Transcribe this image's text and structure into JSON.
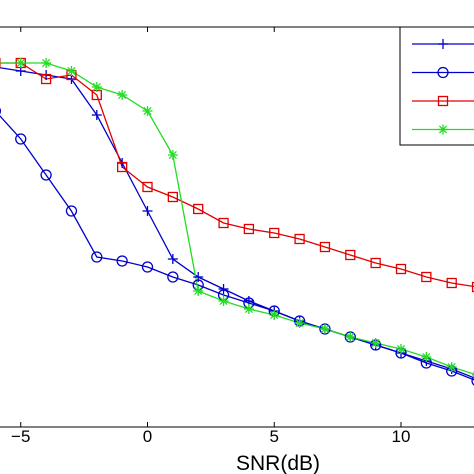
{
  "chart_data": {
    "type": "line",
    "xlabel": "SNR(dB)",
    "ylabel": "",
    "xlim": [
      -6,
      13
    ],
    "ylim": [
      0,
      10
    ],
    "x_ticks": [
      -5,
      0,
      5,
      10
    ],
    "x_tick_labels": [
      "−5",
      "0",
      "5",
      "10"
    ],
    "grid": false,
    "legend_position": "top-right",
    "series": [
      {
        "marker": "plus",
        "color": "#0000cc",
        "x": [
          -6,
          -5,
          -4,
          -3,
          -2,
          -1,
          0,
          1,
          2,
          3,
          4,
          5,
          6,
          7,
          8,
          9,
          10,
          11,
          12,
          13
        ],
        "y": [
          9.0,
          8.9,
          8.8,
          8.7,
          7.8,
          6.6,
          5.4,
          4.2,
          3.75,
          3.45,
          3.15,
          2.9,
          2.65,
          2.45,
          2.25,
          2.05,
          1.85,
          1.65,
          1.45,
          1.2
        ]
      },
      {
        "marker": "circle",
        "color": "#0000cc",
        "x": [
          -6,
          -5,
          -4,
          -3,
          -2,
          -1,
          0,
          1,
          2,
          3,
          4,
          5,
          6,
          7,
          8,
          9,
          10,
          11,
          12,
          13
        ],
        "y": [
          7.9,
          7.2,
          6.3,
          5.4,
          4.25,
          4.15,
          4.0,
          3.75,
          3.55,
          3.3,
          3.1,
          2.9,
          2.65,
          2.45,
          2.25,
          2.05,
          1.85,
          1.6,
          1.4,
          1.15
        ]
      },
      {
        "marker": "square",
        "color": "#e00000",
        "x": [
          -6,
          -5,
          -4,
          -3,
          -2,
          -1,
          0,
          1,
          2,
          3,
          4,
          5,
          6,
          7,
          8,
          9,
          10,
          11,
          12,
          13
        ],
        "y": [
          9.1,
          9.1,
          8.7,
          8.8,
          8.3,
          6.5,
          6.0,
          5.75,
          5.45,
          5.1,
          4.95,
          4.85,
          4.7,
          4.5,
          4.3,
          4.1,
          3.95,
          3.75,
          3.6,
          3.5
        ]
      },
      {
        "marker": "star",
        "color": "#22dd22",
        "x": [
          -6,
          -5,
          -4,
          -3,
          -2,
          -1,
          0,
          1,
          2,
          3,
          4,
          5,
          6,
          7,
          8,
          9,
          10,
          11,
          12,
          13
        ],
        "y": [
          9.1,
          9.1,
          9.1,
          8.9,
          8.5,
          8.3,
          7.9,
          6.8,
          3.4,
          3.15,
          2.95,
          2.8,
          2.6,
          2.45,
          2.25,
          2.1,
          1.95,
          1.75,
          1.5,
          1.3
        ]
      }
    ]
  }
}
